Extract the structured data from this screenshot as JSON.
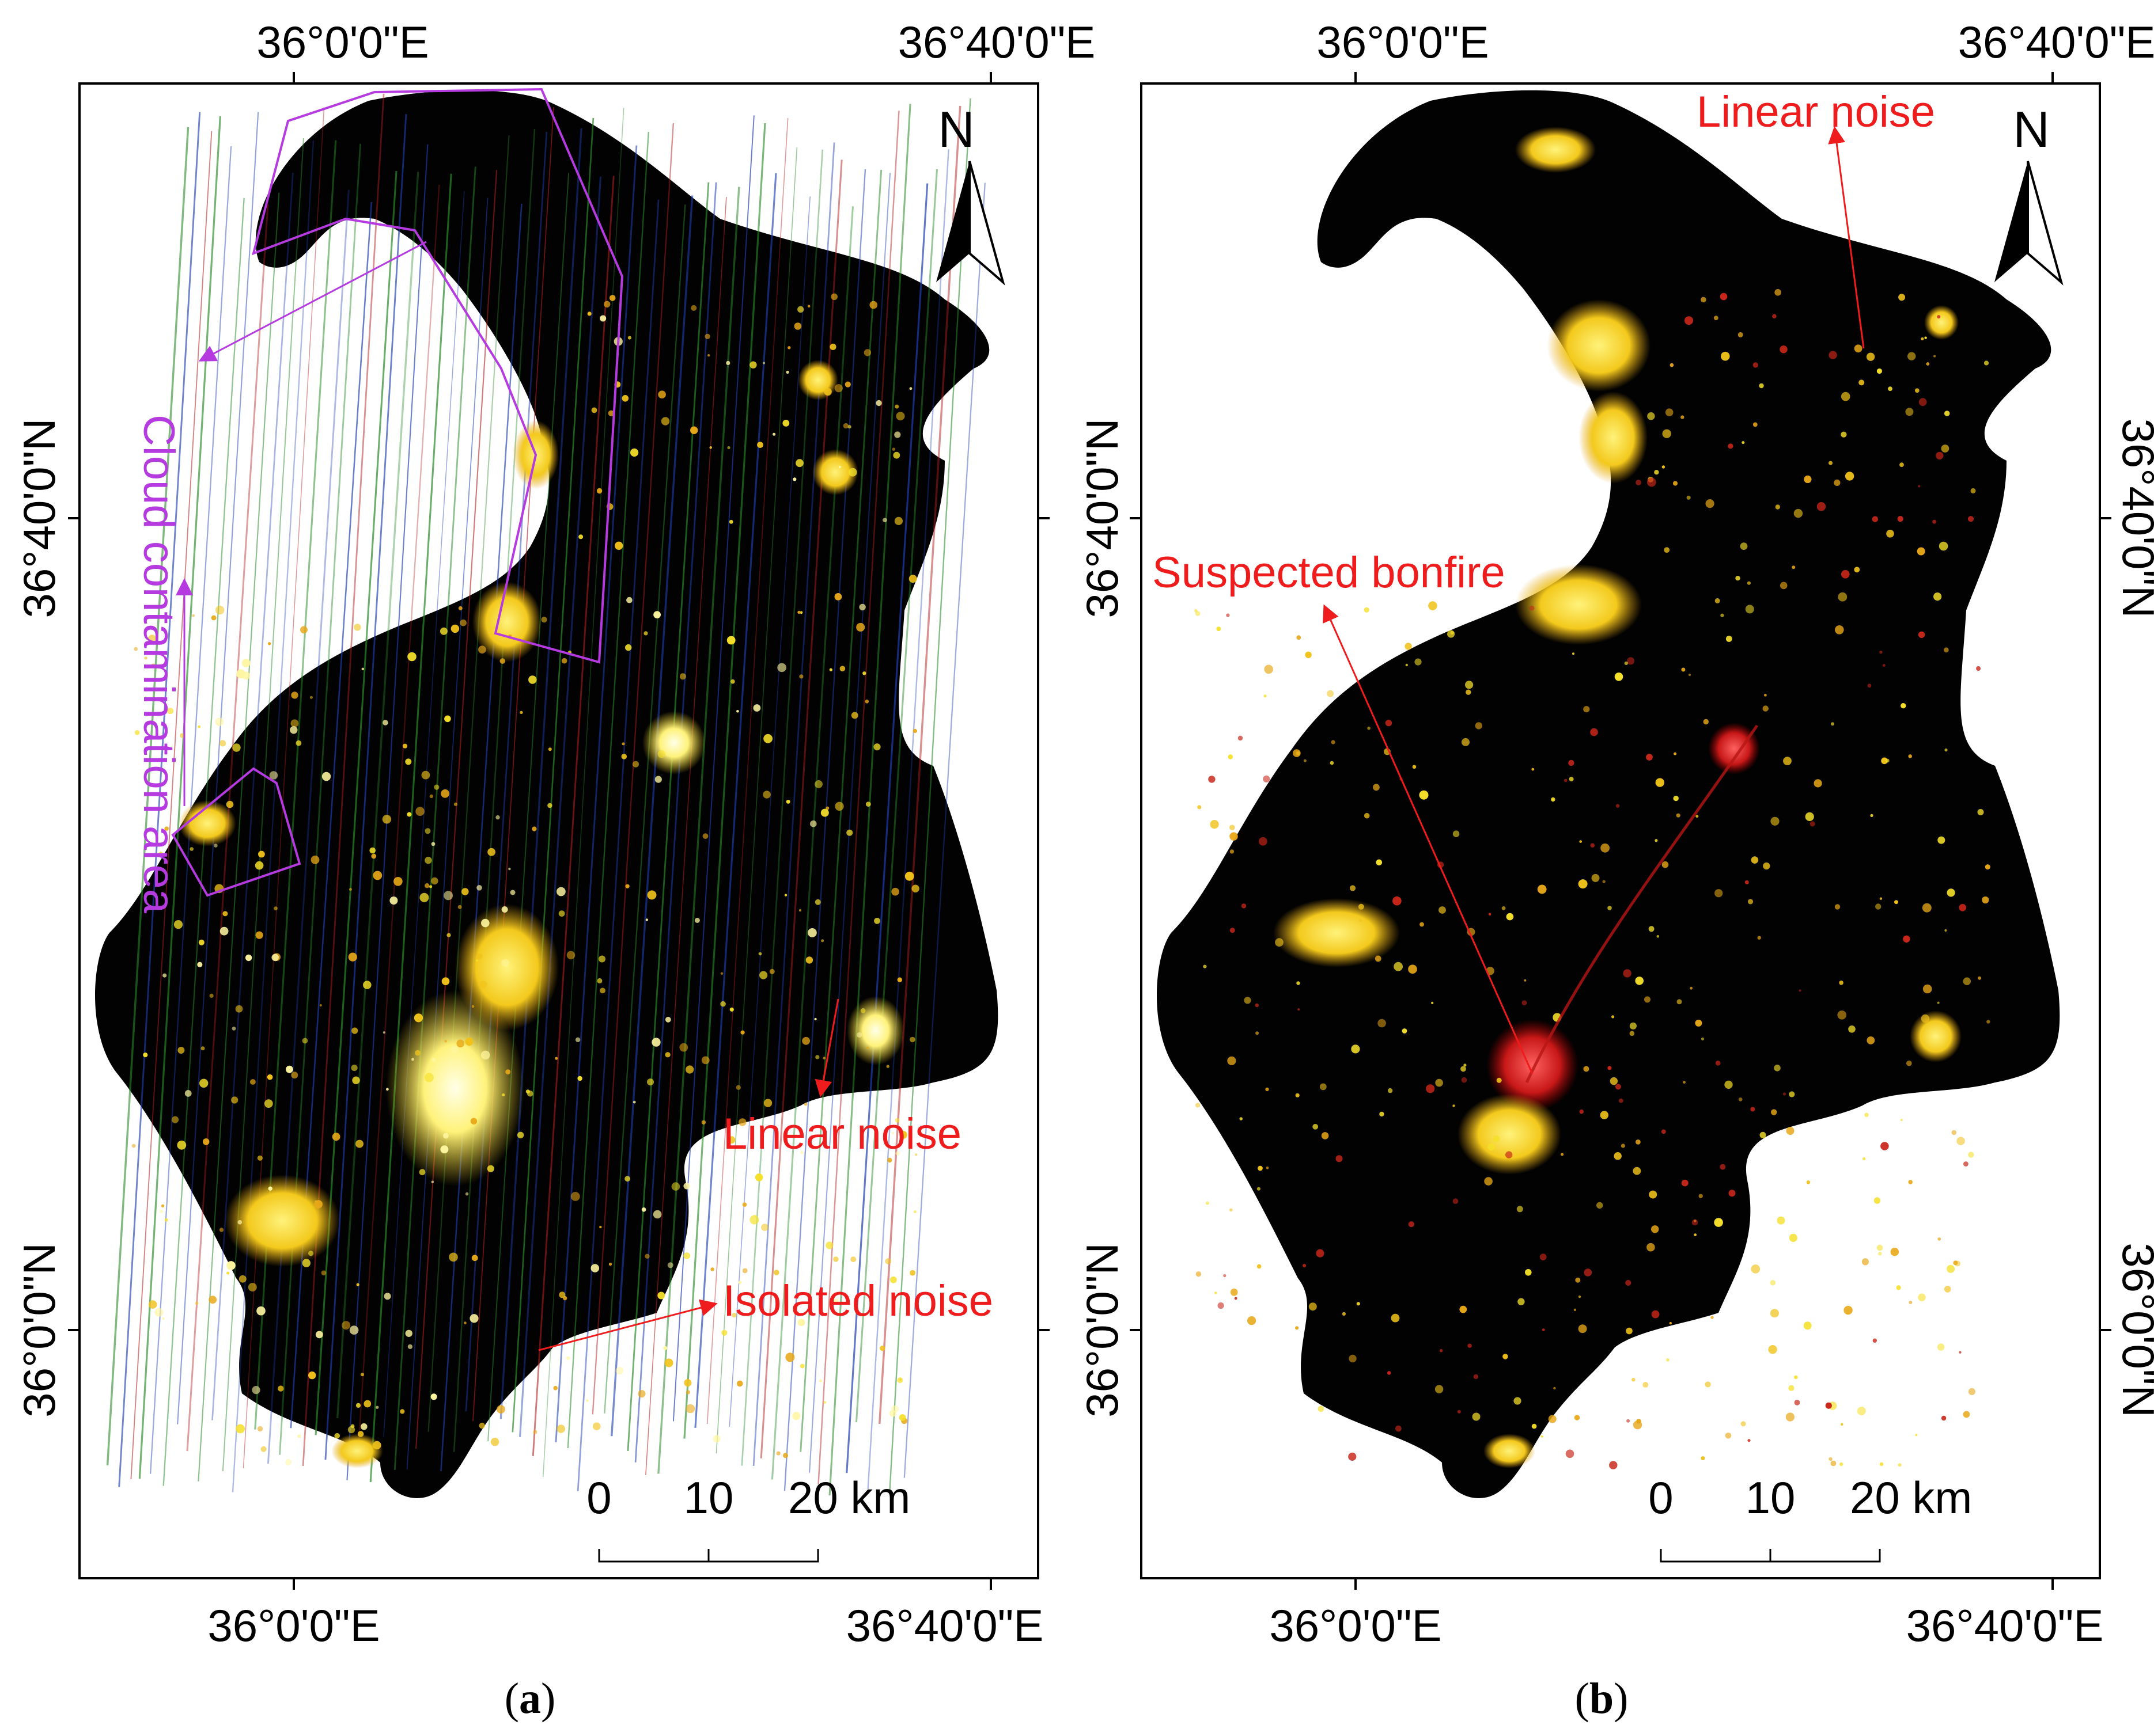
{
  "panels": [
    {
      "id": "a",
      "caption_letter": "a",
      "paren_open": "(",
      "paren_close": ")",
      "top_labels": [
        "36°0'0\"E",
        "36°40'0\"E"
      ],
      "bottom_labels": [
        "36°0'0\"E",
        "36°40'0\"E"
      ],
      "left_labels": [
        "36°40'0\"N",
        "36°0'0\"N"
      ],
      "right_labels": [],
      "north": "N",
      "scale": {
        "zero": "0",
        "mid": "10",
        "end": "20 km"
      },
      "annotations": {
        "cloud": "Cloud contamination area",
        "linear_noise": "Linear noise",
        "isolated_noise": "Isolated noise"
      }
    },
    {
      "id": "b",
      "caption_letter": "b",
      "paren_open": "(",
      "paren_close": ")",
      "top_labels": [
        "36°0'0\"E",
        "36°40'0\"E"
      ],
      "bottom_labels": [
        "36°0'0\"E",
        "36°40'0\"E"
      ],
      "left_labels": [
        "36°40'0\"N",
        "36°0'0\"N"
      ],
      "right_labels": [
        "36°40'0\"N",
        "36°0'0\"N"
      ],
      "north": "N",
      "scale": {
        "zero": "0",
        "mid": "10",
        "end": "20 km"
      },
      "annotations": {
        "linear_noise": "Linear noise",
        "bonfire": "Suspected bonfire"
      }
    }
  ],
  "colors": {
    "annotation_red": "#ee1c1c",
    "annotation_purple": "#b53be0",
    "light_yellow": "#f5e02a",
    "light_white": "#fffde0",
    "background": "#000000"
  }
}
